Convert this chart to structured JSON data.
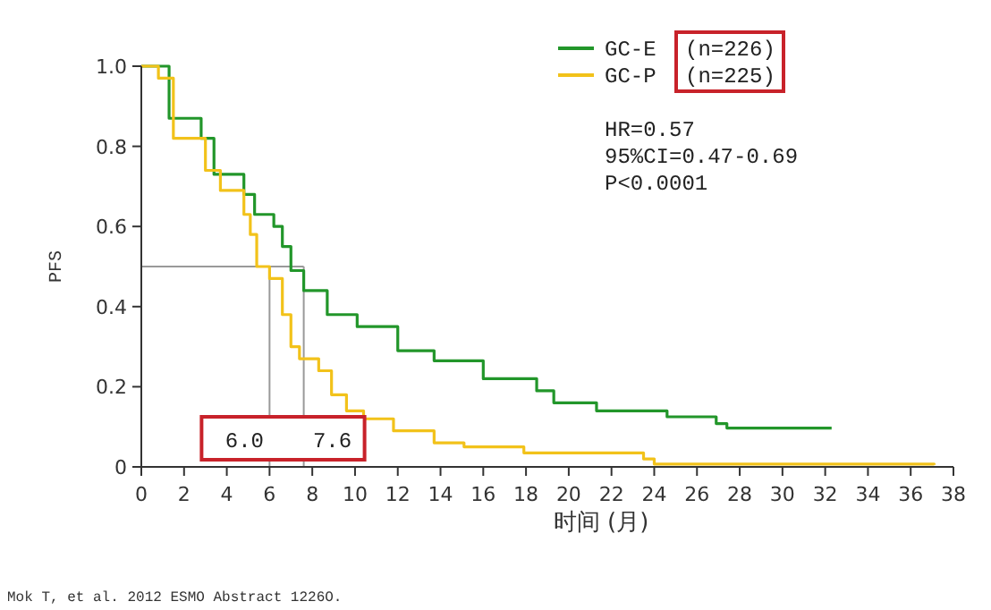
{
  "chart_data": {
    "type": "step",
    "xlabel": "时间 (月)",
    "ylabel": "PFS",
    "xlim": [
      0,
      38
    ],
    "ylim": [
      0,
      1
    ],
    "xticks": [
      0,
      2,
      4,
      6,
      8,
      10,
      12,
      14,
      16,
      18,
      20,
      22,
      24,
      26,
      28,
      30,
      32,
      34,
      36,
      38
    ],
    "yticks": [
      0,
      {
        "value": 0.2,
        "label": "0.2"
      },
      {
        "value": 0.4,
        "label": "0.4"
      },
      {
        "value": 0.6,
        "label": "0.6"
      },
      {
        "value": 0.8,
        "label": "0.8"
      },
      {
        "value": 1,
        "label": "1.0"
      }
    ],
    "series": [
      {
        "name": "GC-E",
        "color": "#22962a",
        "x": [
          0,
          1.3,
          2.8,
          3.4,
          4.8,
          5.3,
          6.2,
          6.6,
          7,
          7.6,
          8.7,
          10.1,
          12,
          13.7,
          16,
          18.5,
          19.3,
          21.3,
          24.6,
          26.9,
          27.4,
          32.3
        ],
        "values": [
          1,
          0.87,
          0.82,
          0.73,
          0.68,
          0.63,
          0.6,
          0.55,
          0.49,
          0.44,
          0.38,
          0.35,
          0.29,
          0.265,
          0.22,
          0.19,
          0.16,
          0.14,
          0.125,
          0.108,
          0.097,
          0.097
        ]
      },
      {
        "name": "GC-P",
        "color": "#f2c21a",
        "x": [
          0,
          0.8,
          1.5,
          3,
          3.7,
          4.8,
          5.1,
          5.4,
          6,
          6.6,
          7,
          7.4,
          8.3,
          8.9,
          9.6,
          10.4,
          11.8,
          13.7,
          15.1,
          17.9,
          23.5,
          24,
          37.1
        ],
        "values": [
          1,
          0.97,
          0.82,
          0.74,
          0.69,
          0.63,
          0.58,
          0.5,
          0.47,
          0.38,
          0.3,
          0.27,
          0.24,
          0.18,
          0.14,
          0.12,
          0.09,
          0.06,
          0.05,
          0.035,
          0.02,
          0.007,
          0.005
        ]
      }
    ],
    "ref_lines": [
      {
        "axis": "y",
        "value": 0.5,
        "color": "#999999"
      },
      {
        "axis": "x",
        "value": 6.0,
        "label": "6.0",
        "color": "#999999"
      },
      {
        "axis": "x",
        "value": 7.6,
        "label": "7.6",
        "color": "#999999"
      }
    ],
    "annotations": [
      "(n=226)",
      "(n=225)",
      "HR=0.57",
      "95%CI=0.47-0.69",
      "P<0.0001",
      "Mok T, et al. 2012 ESMO Abstract 1226O."
    ],
    "legend": "top right",
    "grid": false
  }
}
